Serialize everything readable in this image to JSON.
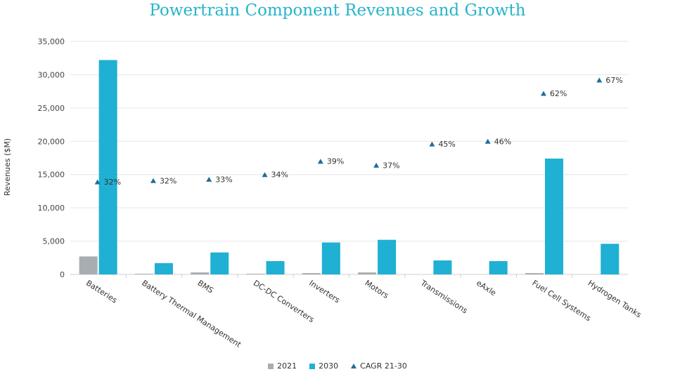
{
  "colors": {
    "y2021": "#a7adb3",
    "y2030": "#1fb0d3",
    "cagr": "#1a6f9a",
    "title": "#27b4c9",
    "grid": "#e6e6e6"
  },
  "chart_data": {
    "type": "bar",
    "title": "Powertrain Component Revenues and Growth",
    "ylabel": "Revenues ($M)",
    "xlabel": "",
    "ylim": [
      0,
      35000
    ],
    "yticks": [
      0,
      5000,
      10000,
      15000,
      20000,
      25000,
      30000,
      35000
    ],
    "ytick_labels": [
      "0",
      "5,000",
      "10,000",
      "15,000",
      "20,000",
      "25,000",
      "30,000",
      "35,000"
    ],
    "grid": true,
    "legend_position": "bottom",
    "categories": [
      "Batteries",
      "Battery Thermal Management",
      "BMS",
      "DC-DC Converters",
      "Inverters",
      "Motors",
      "Transmissions",
      "eAxle",
      "Fuel Cell Systems",
      "Hydrogen Tanks"
    ],
    "series": [
      {
        "name": "2021",
        "kind": "bar",
        "values": [
          2700,
          100,
          300,
          100,
          200,
          300,
          0,
          0,
          200,
          0
        ]
      },
      {
        "name": "2030",
        "kind": "bar",
        "values": [
          32200,
          1700,
          3300,
          2000,
          4800,
          5200,
          2100,
          2000,
          17400,
          4600
        ]
      },
      {
        "name": "CAGR 21-30",
        "kind": "marker",
        "values": [
          13900,
          14100,
          14300,
          15000,
          17000,
          16400,
          19600,
          20000,
          27200,
          29200
        ],
        "labels": [
          "32%",
          "32%",
          "33%",
          "34%",
          "39%",
          "37%",
          "45%",
          "46%",
          "62%",
          "67%"
        ]
      }
    ]
  }
}
